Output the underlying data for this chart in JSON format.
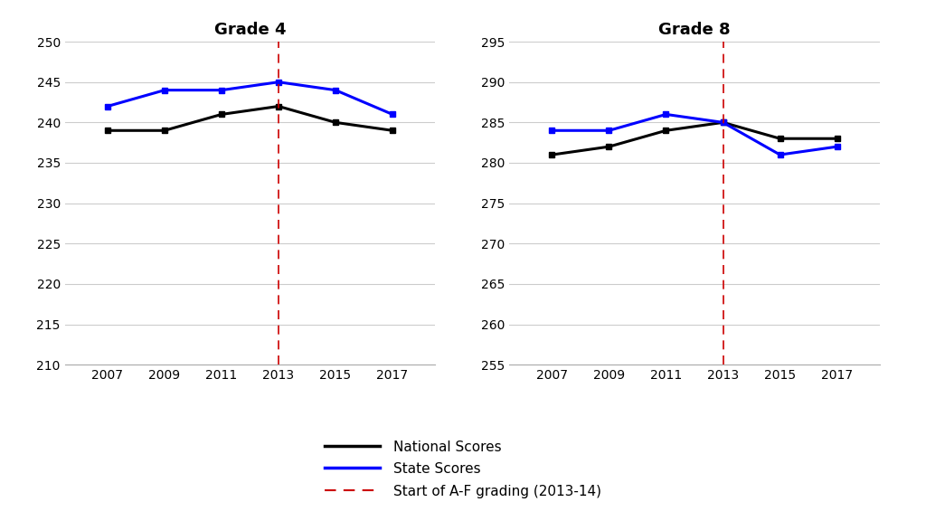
{
  "years": [
    2007,
    2009,
    2011,
    2013,
    2015,
    2017
  ],
  "grade4": {
    "title": "Grade 4",
    "national": [
      239,
      239,
      241,
      242,
      240,
      239
    ],
    "state": [
      242,
      244,
      244,
      245,
      244,
      241
    ],
    "ylim": [
      210,
      250
    ],
    "yticks": [
      210,
      215,
      220,
      225,
      230,
      235,
      240,
      245,
      250
    ]
  },
  "grade8": {
    "title": "Grade 8",
    "national": [
      281,
      282,
      284,
      285,
      283,
      283
    ],
    "state": [
      284,
      284,
      286,
      285,
      281,
      282
    ],
    "ylim": [
      255,
      295
    ],
    "yticks": [
      255,
      260,
      265,
      270,
      275,
      280,
      285,
      290,
      295
    ]
  },
  "vline_x": 2013,
  "national_color": "#000000",
  "state_color": "#0000ff",
  "vline_color": "#cc0000",
  "marker": "s",
  "linewidth": 2.2,
  "markersize": 5,
  "legend_labels": [
    "National Scores",
    "State Scores",
    "Start of A-F grading (2013-14)"
  ],
  "background_color": "#ffffff",
  "grid_color": "#cccccc",
  "tick_labelsize": 10,
  "title_fontsize": 13
}
